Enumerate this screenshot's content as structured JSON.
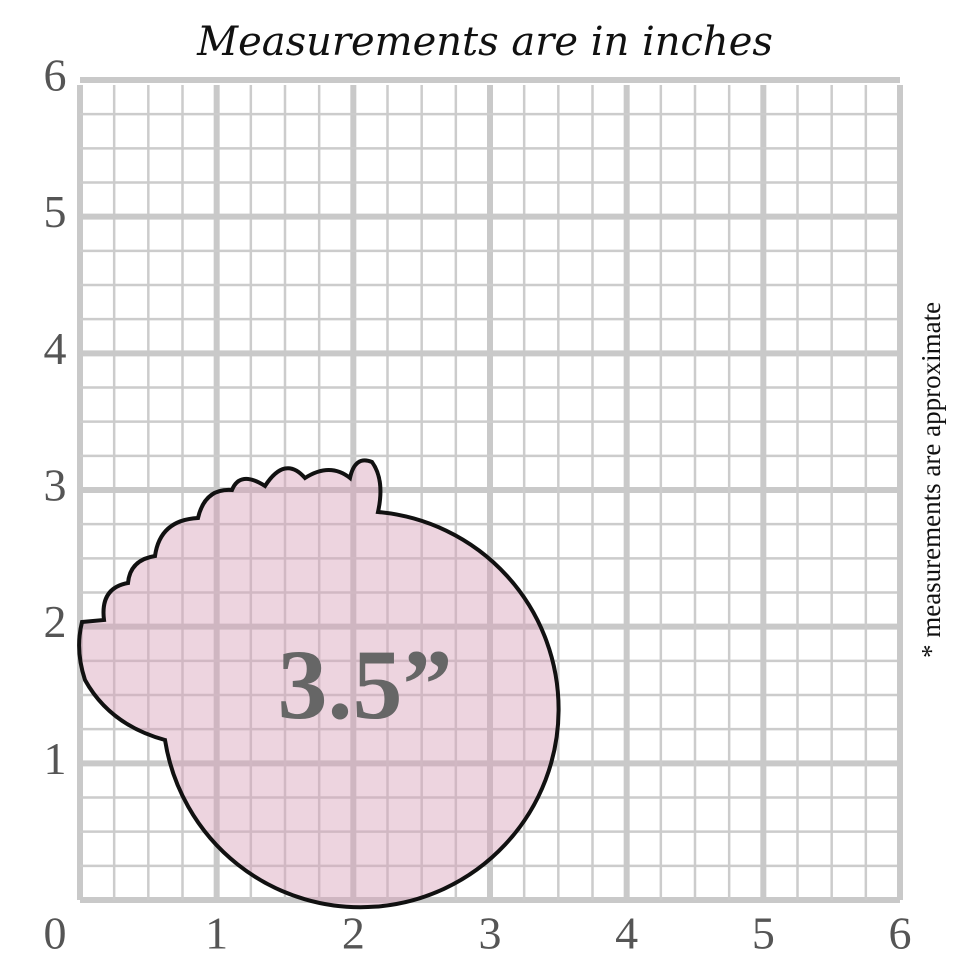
{
  "title": "Measurements are in inches",
  "note": "* measurements are approximate",
  "axis": {
    "origin": 0,
    "x_labels": [
      1,
      2,
      3,
      4,
      5,
      6
    ],
    "y_labels": [
      1,
      2,
      3,
      4,
      5,
      6
    ]
  },
  "shape": {
    "label": "3.5”"
  }
}
